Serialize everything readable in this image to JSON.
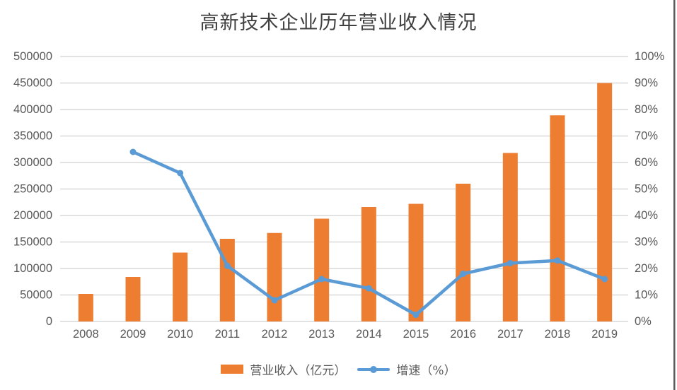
{
  "colors": {
    "bar_orange": "#ED7D31",
    "line_blue": "#5B9BD5",
    "gridline": "#D9D9D9",
    "axis_text": "#595959",
    "title_text": "#404040",
    "edge_line": "#595959",
    "background": "#FFFFFF"
  },
  "chart_data": {
    "type": "bar",
    "combo": "bar+line dual-axis",
    "title": "高新技术企业历年营业收入情况",
    "categories": [
      "2008",
      "2009",
      "2010",
      "2011",
      "2012",
      "2013",
      "2014",
      "2015",
      "2016",
      "2017",
      "2018",
      "2019"
    ],
    "series": [
      {
        "name": "营业收入（亿元）",
        "type": "bar",
        "axis": "left",
        "color": "#ED7D31",
        "values": [
          52000,
          84000,
          130000,
          156000,
          167000,
          194000,
          216000,
          222000,
          260000,
          318000,
          389000,
          450000
        ]
      },
      {
        "name": "增速（%）",
        "type": "line",
        "axis": "right",
        "color": "#5B9BD5",
        "values": [
          null,
          64,
          56,
          21,
          8,
          16,
          12.5,
          2.5,
          18,
          22,
          23,
          16
        ]
      }
    ],
    "left_axis": {
      "min": 0,
      "max": 500000,
      "step": 50000,
      "tick_labels": [
        "0",
        "50000",
        "100000",
        "150000",
        "200000",
        "250000",
        "300000",
        "350000",
        "400000",
        "450000",
        "500000"
      ]
    },
    "right_axis": {
      "min": 0,
      "max": 100,
      "step": 10,
      "suffix": "%",
      "tick_labels": [
        "0%",
        "10%",
        "20%",
        "30%",
        "40%",
        "50%",
        "60%",
        "70%",
        "80%",
        "90%",
        "100%"
      ]
    },
    "grid": true,
    "legend_position": "bottom"
  }
}
